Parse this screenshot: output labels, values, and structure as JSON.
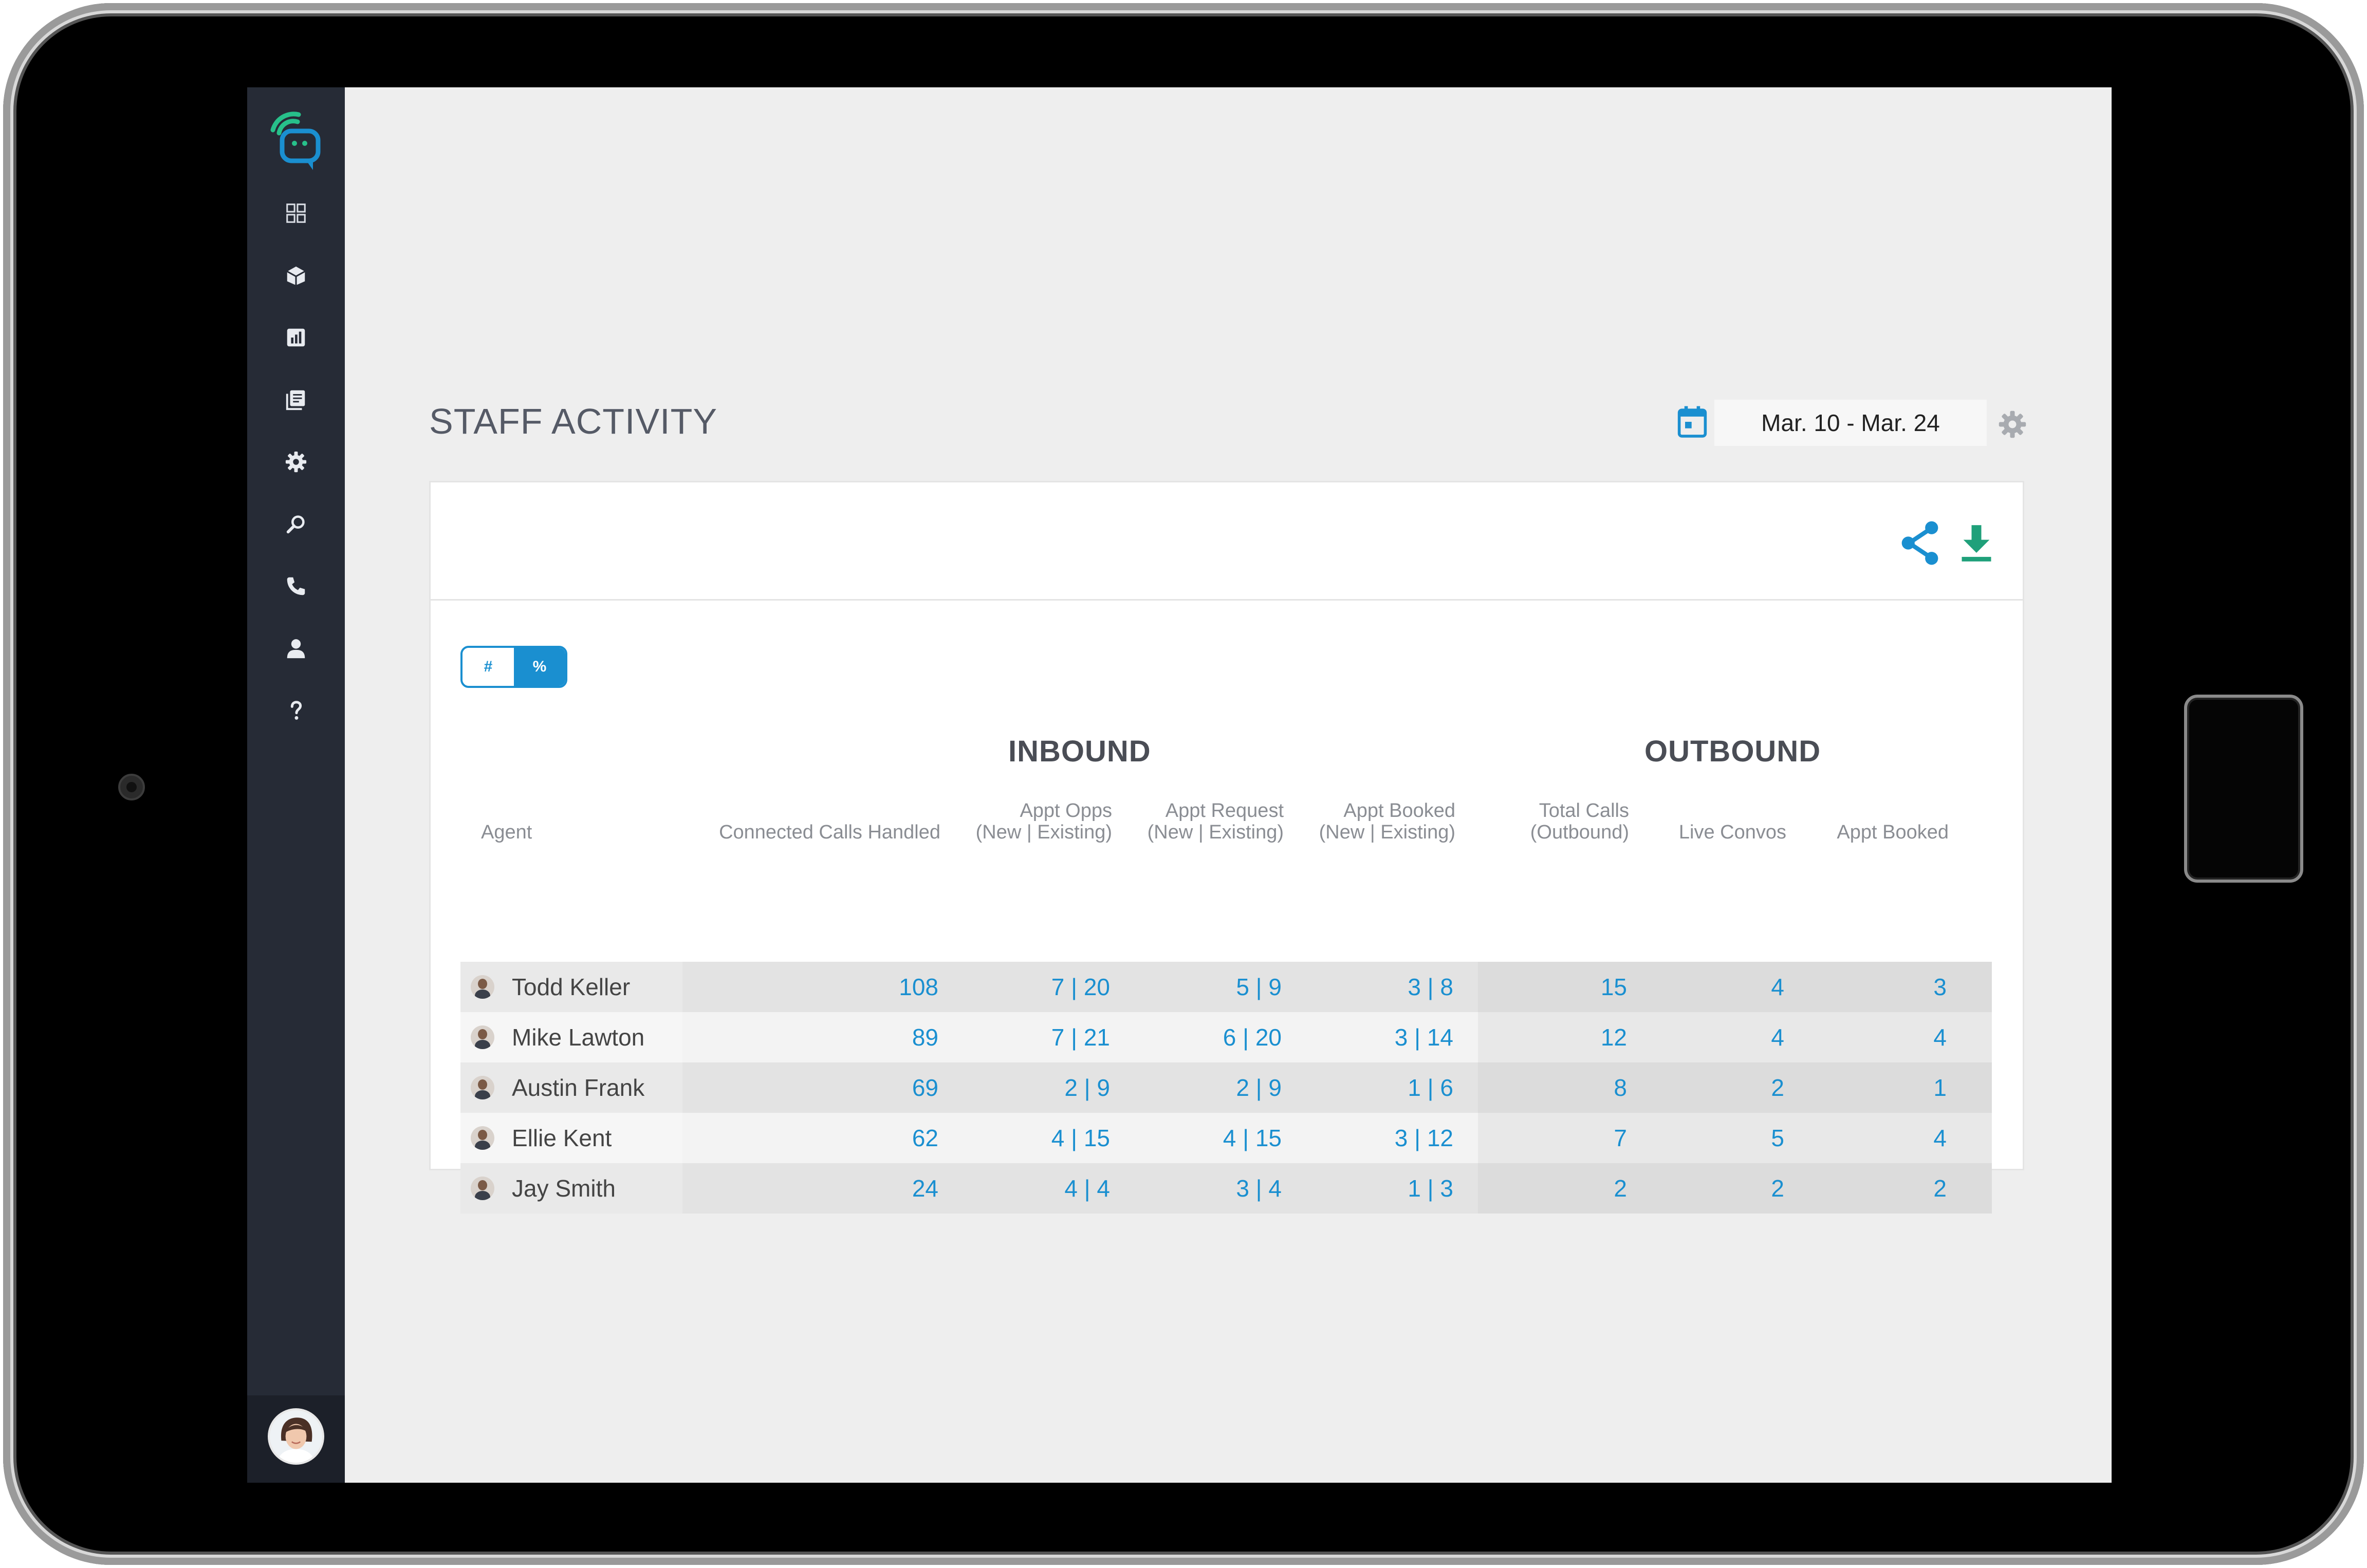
{
  "page": {
    "title": "STAFF ACTIVITY",
    "date_range": "Mar. 10 - Mar. 24"
  },
  "toggle": {
    "count_label": "#",
    "percent_label": "%"
  },
  "sections": {
    "inbound": "INBOUND",
    "outbound": "OUTBOUND"
  },
  "columns": {
    "agent": "Agent",
    "connected_calls": "Connected Calls Handled",
    "appt_opps_1": "Appt Opps",
    "appt_opps_2": "(New | Existing)",
    "appt_request_1": "Appt Request",
    "appt_request_2": "(New | Existing)",
    "appt_booked_in_1": "Appt Booked",
    "appt_booked_in_2": "(New | Existing)",
    "total_calls_1": "Total Calls",
    "total_calls_2": "(Outbound)",
    "live_convos": "Live Convos",
    "appt_booked_out": "Appt Booked"
  },
  "rows": [
    {
      "agent": "Todd Keller",
      "connected": "108",
      "opps": "7 | 20",
      "request": "5 | 9",
      "booked_in": "3 | 8",
      "total_calls": "15",
      "live_convos": "4",
      "booked_out": "3"
    },
    {
      "agent": "Mike Lawton",
      "connected": "89",
      "opps": "7 | 21",
      "request": "6 | 20",
      "booked_in": "3 | 14",
      "total_calls": "12",
      "live_convos": "4",
      "booked_out": "4"
    },
    {
      "agent": "Austin Frank",
      "connected": "69",
      "opps": "2 | 9",
      "request": "2 | 9",
      "booked_in": "1 | 6",
      "total_calls": "8",
      "live_convos": "2",
      "booked_out": "1"
    },
    {
      "agent": "Ellie Kent",
      "connected": "62",
      "opps": "4 | 15",
      "request": "4 | 15",
      "booked_in": "3 | 12",
      "total_calls": "7",
      "live_convos": "5",
      "booked_out": "4"
    },
    {
      "agent": "Jay Smith",
      "connected": "24",
      "opps": "4 | 4",
      "request": "3 | 4",
      "booked_in": "1 | 3",
      "total_calls": "2",
      "live_convos": "2",
      "booked_out": "2"
    }
  ],
  "colors": {
    "accent": "#1a8fd0",
    "sidebar": "#262b36",
    "download": "#1fa07a",
    "logo_green": "#27c08a",
    "logo_blue": "#1a8fd0"
  },
  "icons": {
    "sidebar": [
      "dashboard-icon",
      "inbox-icon",
      "reports-icon",
      "documents-icon",
      "settings-icon",
      "search-icon",
      "phone-icon",
      "user-icon",
      "help-icon"
    ],
    "header": [
      "calendar-icon",
      "gear-icon"
    ],
    "card": [
      "share-icon",
      "download-icon"
    ]
  }
}
